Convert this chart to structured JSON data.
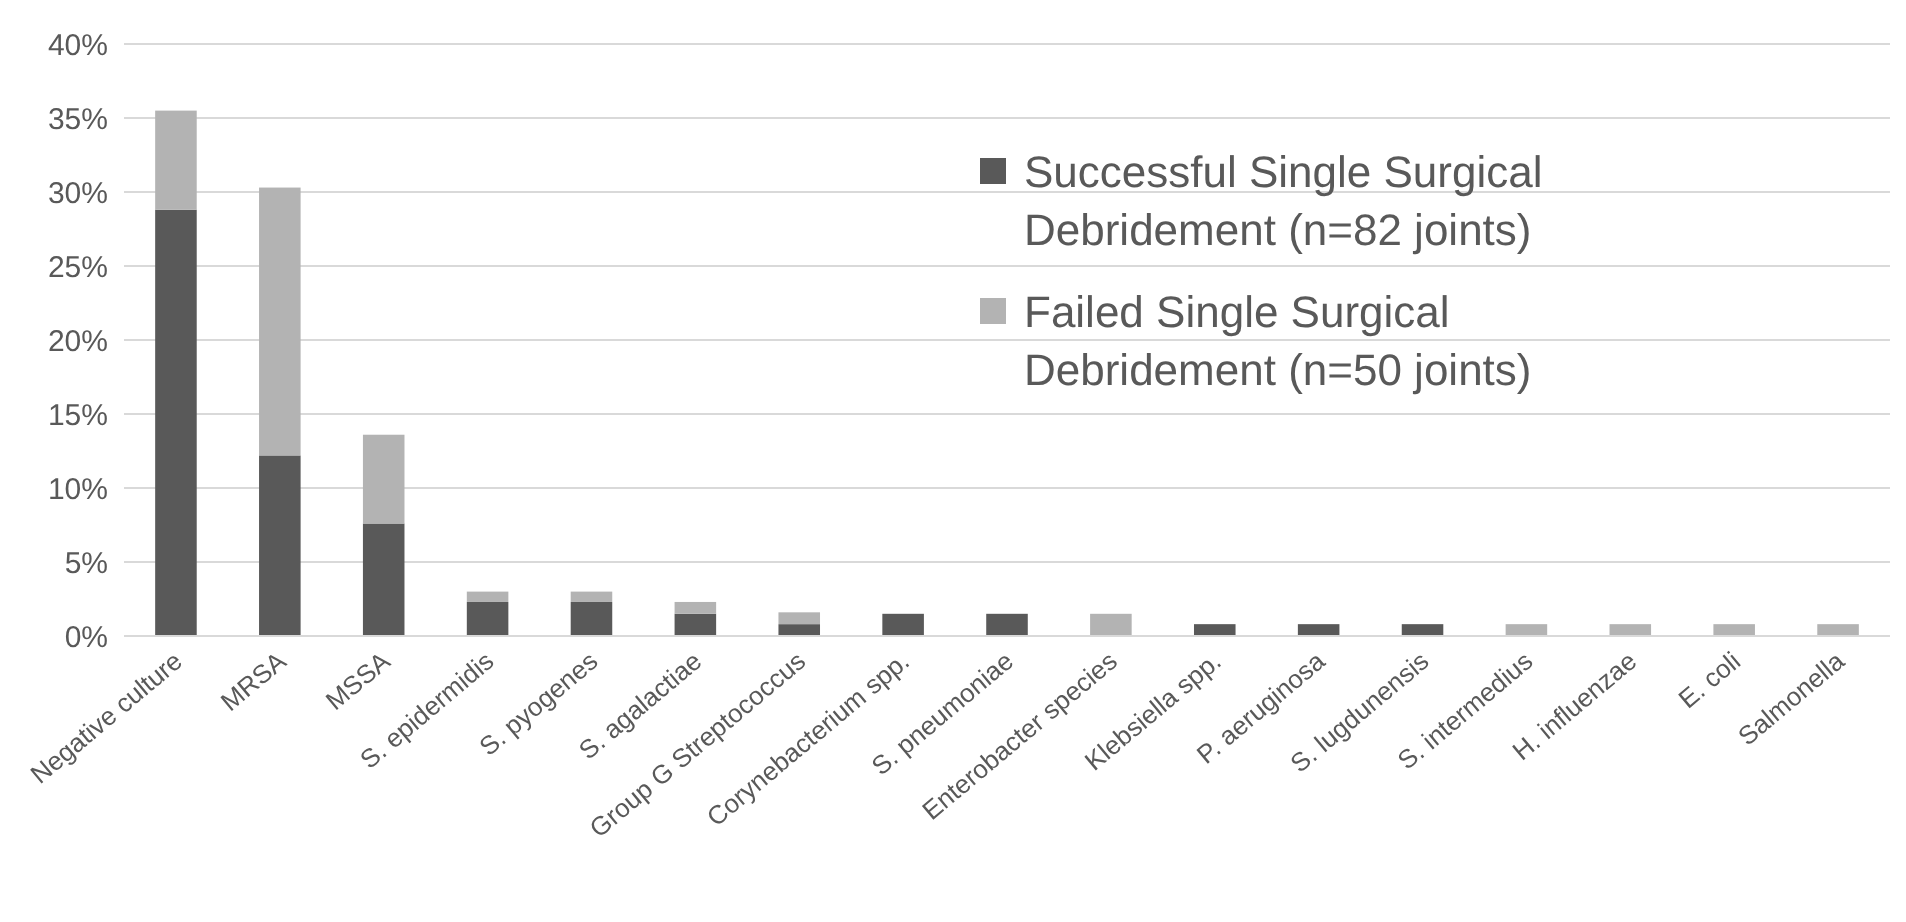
{
  "chart_data": {
    "type": "bar",
    "stacked": true,
    "categories": [
      "Negative culture",
      "MRSA",
      "MSSA",
      "S. epidermidis",
      "S. pyogenes",
      "S. agalactiae",
      "Group G Streptococcus",
      "Corynebacterium spp.",
      "S. pneumoniae",
      "Enterobacter species",
      "Klebsiella spp.",
      "P. aeruginosa",
      "S. lugdunensis",
      "S. intermedius",
      "H. influenzae",
      "E. coli",
      "Salmonella"
    ],
    "series": [
      {
        "name": "Successful Single Surgical Debridement (n=82 joints)",
        "color": "#595959",
        "values": [
          28.8,
          12.2,
          7.6,
          2.3,
          2.3,
          1.5,
          0.8,
          1.5,
          1.5,
          0,
          0.8,
          0.8,
          0.8,
          0,
          0,
          0,
          0
        ]
      },
      {
        "name": "Failed Single Surgical Debridement (n=50 joints)",
        "color": "#b3b3b3",
        "values": [
          6.7,
          18.1,
          6.0,
          0.7,
          0.7,
          0.8,
          0.8,
          0,
          0,
          1.5,
          0,
          0,
          0,
          0.8,
          0.8,
          0.8,
          0.8
        ]
      }
    ],
    "ylim": [
      0,
      40
    ],
    "yticks": [
      {
        "value": 0,
        "label": "0%"
      },
      {
        "value": 5,
        "label": "5%"
      },
      {
        "value": 10,
        "label": "10%"
      },
      {
        "value": 15,
        "label": "15%"
      },
      {
        "value": 20,
        "label": "20%"
      },
      {
        "value": 25,
        "label": "25%"
      },
      {
        "value": 30,
        "label": "30%"
      },
      {
        "value": 35,
        "label": "35%"
      },
      {
        "value": 40,
        "label": "40%"
      }
    ],
    "grid": "y",
    "legend": "top right"
  }
}
